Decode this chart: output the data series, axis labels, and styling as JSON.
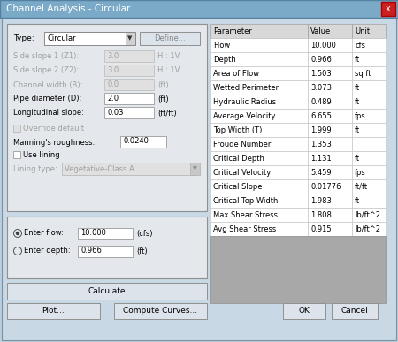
{
  "title": "Channel Analysis - Circular",
  "bg_outer": "#b8cfe0",
  "bg_dialog": "#d0dce8",
  "bg_panel": "#e4e8ec",
  "bg_panel2": "#e4e8ec",
  "title_bar_color": "#6090b8",
  "close_btn_color": "#cc2020",
  "table_headers": [
    "Parameter",
    "Value",
    "Unit"
  ],
  "table_rows": [
    [
      "Flow",
      "10.000",
      "cfs"
    ],
    [
      "Depth",
      "0.966",
      "ft"
    ],
    [
      "Area of Flow",
      "1.503",
      "sq ft"
    ],
    [
      "Wetted Perimeter",
      "3.073",
      "ft"
    ],
    [
      "Hydraulic Radius",
      "0.489",
      "ft"
    ],
    [
      "Average Velocity",
      "6.655",
      "fps"
    ],
    [
      "Top Width (T)",
      "1.999",
      "ft"
    ],
    [
      "Froude Number",
      "1.353",
      ""
    ],
    [
      "Critical Depth",
      "1.131",
      "ft"
    ],
    [
      "Critical Velocity",
      "5.459",
      "fps"
    ],
    [
      "Critical Slope",
      "0.01776",
      "ft/ft"
    ],
    [
      "Critical Top Width",
      "1.983",
      "ft"
    ],
    [
      "Max Shear Stress",
      "1.808",
      "lb/ft^2"
    ],
    [
      "Avg Shear Stress",
      "0.915",
      "lb/ft^2"
    ]
  ],
  "left_fields": [
    [
      "Side slope 1 (Z1):",
      "3.0",
      "H : 1V",
      true
    ],
    [
      "Side slope 2 (Z2):",
      "3.0",
      "H : 1V",
      true
    ],
    [
      "Channel width (B):",
      "0.0",
      "(ft)",
      true
    ],
    [
      "Pipe diameter (D):",
      "2.0",
      "(ft)",
      false
    ],
    [
      "Longitudinal slope:",
      "0.03",
      "(ft/ft)",
      false
    ]
  ],
  "mannings": "0.0240",
  "flow_value": "10.000",
  "depth_value": "0.966",
  "type_value": "Circular",
  "lining_type": "Vegetative-Class A",
  "table_header_bg": "#d8d8d8",
  "table_row_bg": "#ffffff",
  "table_gray_bg": "#a8a8a8",
  "button_bg": "#dde3ea",
  "input_bg": "#ffffff",
  "input_border": "#888888",
  "disabled_text": "#a0a0a0",
  "normal_text": "#000000",
  "fs_title": 7.5,
  "fs_body": 6.5,
  "fs_small": 6.0
}
